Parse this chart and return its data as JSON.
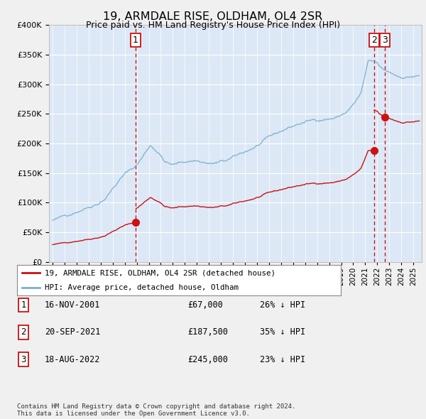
{
  "title": "19, ARMDALE RISE, OLDHAM, OL4 2SR",
  "subtitle": "Price paid vs. HM Land Registry's House Price Index (HPI)",
  "fig_bg_color": "#f0f0f0",
  "plot_bg_color": "#dce8f5",
  "ylim": [
    0,
    400000
  ],
  "yticks": [
    0,
    50000,
    100000,
    150000,
    200000,
    250000,
    300000,
    350000,
    400000
  ],
  "sale_years": [
    2001.88,
    2021.72,
    2022.63
  ],
  "sale_prices": [
    67000,
    187500,
    245000
  ],
  "sale_labels": [
    "1",
    "2",
    "3"
  ],
  "hpi_line_color": "#7bafd4",
  "sale_line_color": "#cc1111",
  "vline_color": "#cc0000",
  "legend_label_sale": "19, ARMDALE RISE, OLDHAM, OL4 2SR (detached house)",
  "legend_label_hpi": "HPI: Average price, detached house, Oldham",
  "table_entries": [
    {
      "label": "1",
      "date": "16-NOV-2001",
      "price": "£67,000",
      "hpi": "26% ↓ HPI"
    },
    {
      "label": "2",
      "date": "20-SEP-2021",
      "price": "£187,500",
      "hpi": "35% ↓ HPI"
    },
    {
      "label": "3",
      "date": "18-AUG-2022",
      "price": "£245,000",
      "hpi": "23% ↓ HPI"
    }
  ],
  "footer": "Contains HM Land Registry data © Crown copyright and database right 2024.\nThis data is licensed under the Open Government Licence v3.0."
}
